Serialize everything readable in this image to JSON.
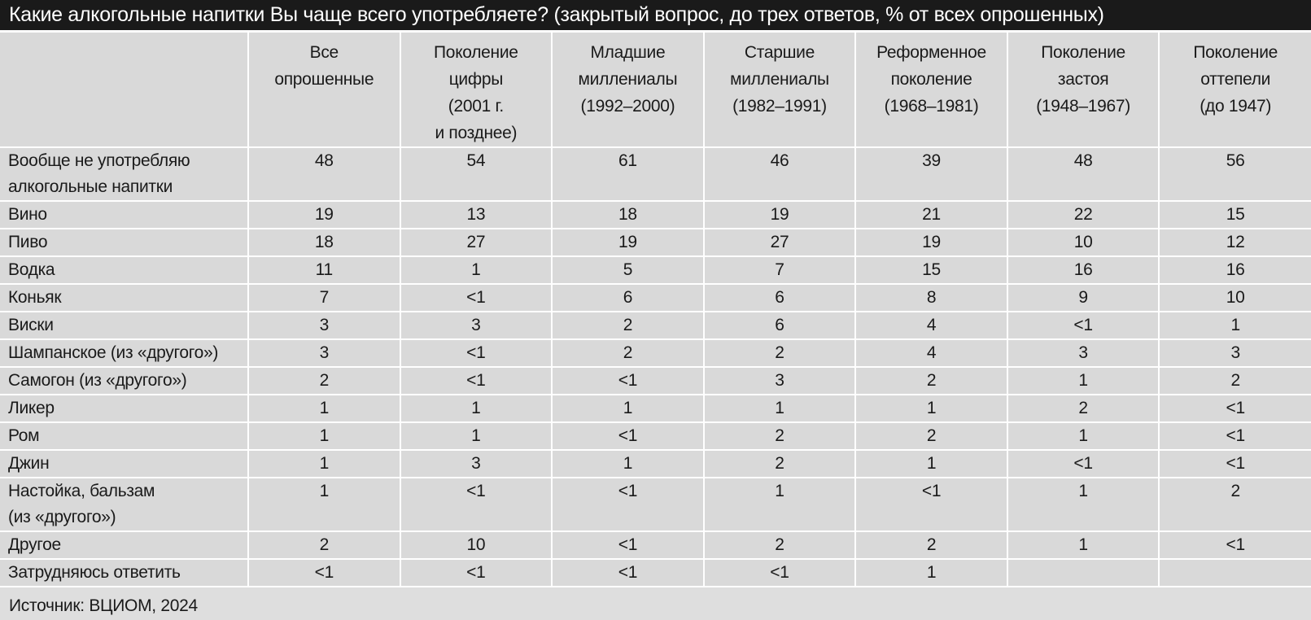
{
  "header_bar": {
    "title": "Какие алкогольные напитки Вы чаще всего употребляете? (закрытый вопрос, до трех ответов, % от всех опрошенных)"
  },
  "footer": {
    "source": "Источник: ВЦИОМ, 2024"
  },
  "colors": {
    "title_bar_bg": "#1a1a1a",
    "title_text": "#ffffff",
    "cell_bg": "#d9d9d9",
    "separator": "#ffffff",
    "page_bg": "#dedede",
    "text": "#1a1a1a"
  },
  "chart_data": {
    "type": "table",
    "title": "Какие алкогольные напитки Вы чаще всего употребляете?",
    "subtitle": "(закрытый вопрос, до трех ответов, % от всех опрошенных)",
    "unit": "% от всех опрошенных",
    "columns": [
      "",
      "Все\nопрошенные",
      "Поколение\nцифры\n(2001 г.\nи позднее)",
      "Младшие\nмиллениалы\n(1992–2000)",
      "Старшие\nмиллениалы\n(1982–1991)",
      "Реформенное\nпоколение\n(1968–1981)",
      "Поколение\nзастоя\n(1948–1967)",
      "Поколение\nоттепели\n(до 1947)"
    ],
    "rows": [
      {
        "label": "Вообще не употребляю\nалкогольные напитки",
        "values": [
          48,
          54,
          61,
          46,
          39,
          48,
          56
        ]
      },
      {
        "label": "Вино",
        "values": [
          19,
          13,
          18,
          19,
          21,
          22,
          15
        ]
      },
      {
        "label": "Пиво",
        "values": [
          18,
          27,
          19,
          27,
          19,
          10,
          12
        ]
      },
      {
        "label": "Водка",
        "values": [
          11,
          1,
          5,
          7,
          15,
          16,
          16
        ]
      },
      {
        "label": "Коньяк",
        "values": [
          7,
          "<1",
          6,
          6,
          8,
          9,
          10
        ]
      },
      {
        "label": "Виски",
        "values": [
          3,
          3,
          2,
          6,
          4,
          "<1",
          1
        ]
      },
      {
        "label": "Шампанское (из «другого»)",
        "values": [
          3,
          "<1",
          2,
          2,
          4,
          3,
          3
        ]
      },
      {
        "label": "Самогон (из «другого»)",
        "values": [
          2,
          "<1",
          "<1",
          3,
          2,
          1,
          2
        ]
      },
      {
        "label": "Ликер",
        "values": [
          1,
          1,
          1,
          1,
          1,
          2,
          "<1"
        ]
      },
      {
        "label": "Ром",
        "values": [
          1,
          1,
          "<1",
          2,
          2,
          1,
          "<1"
        ]
      },
      {
        "label": "Джин",
        "values": [
          1,
          3,
          1,
          2,
          1,
          "<1",
          "<1"
        ]
      },
      {
        "label": "Настойка, бальзам\n(из «другого»)",
        "values": [
          1,
          "<1",
          "<1",
          1,
          "<1",
          1,
          2
        ]
      },
      {
        "label": "Другое",
        "values": [
          2,
          10,
          "<1",
          2,
          2,
          1,
          "<1"
        ]
      },
      {
        "label": "Затрудняюсь ответить",
        "values": [
          "<1",
          "<1",
          "<1",
          "<1",
          1,
          "",
          ""
        ]
      }
    ],
    "source": "Источник: ВЦИОМ, 2024"
  }
}
